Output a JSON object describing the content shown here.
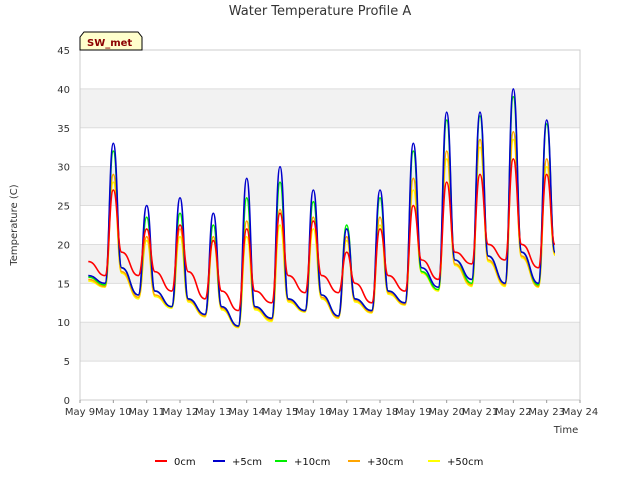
{
  "chart_data": {
    "type": "line",
    "title": "Water Temperature Profile A",
    "xlabel": "Time",
    "ylabel": "Temperature (C)",
    "site_label": "SW_met",
    "ylim": [
      0,
      45
    ],
    "yticks": [
      0,
      5,
      10,
      15,
      20,
      25,
      30,
      35,
      40,
      45
    ],
    "xlim": [
      "2024-05-09",
      "2024-05-24"
    ],
    "xtick_labels": [
      "May 9",
      "May 10",
      "May 11",
      "May 12",
      "May 13",
      "May 14",
      "May 15",
      "May 16",
      "May 17",
      "May 18",
      "May 19",
      "May 20",
      "May 21",
      "May 22",
      "May 23",
      "May 24"
    ],
    "grid": "horizontal bands",
    "legend_position": "bottom",
    "colors": {
      "0cm": "#ff0000",
      "+5cm": "#0000cc",
      "+10cm": "#00ee00",
      "+30cm": "#ffa500",
      "+50cm": "#ffff00",
      "band": "#f2f2f2",
      "badge_bg": "#ffffcc"
    },
    "x": [
      "May 9.25",
      "May 9.75",
      "May 10",
      "May 10.25",
      "May 10.75",
      "May 11",
      "May 11.25",
      "May 11.75",
      "May 12",
      "May 12.25",
      "May 12.75",
      "May 13",
      "May 13.25",
      "May 13.75",
      "May 14",
      "May 14.25",
      "May 14.75",
      "May 15",
      "May 15.25",
      "May 15.75",
      "May 16",
      "May 16.25",
      "May 16.75",
      "May 17",
      "May 17.25",
      "May 17.75",
      "May 18",
      "May 18.25",
      "May 18.75",
      "May 19",
      "May 19.25",
      "May 19.75",
      "May 20",
      "May 20.25",
      "May 20.75",
      "May 21",
      "May 21.25",
      "May 21.75",
      "May 22",
      "May 22.25",
      "May 22.75",
      "May 23",
      "May 23.25"
    ],
    "series": [
      {
        "name": "0cm",
        "color": "#ff0000",
        "values": [
          17.8,
          16.0,
          27.0,
          19.0,
          16.0,
          22.0,
          16.5,
          14.0,
          22.5,
          16.5,
          13.0,
          20.5,
          14.0,
          11.5,
          22.0,
          14.0,
          12.5,
          24.0,
          16.0,
          13.8,
          23.0,
          16.0,
          13.8,
          19.0,
          15.0,
          12.5,
          22.0,
          16.0,
          14.0,
          25.0,
          18.0,
          15.5,
          28.0,
          19.0,
          17.5,
          29.0,
          20.0,
          18.0,
          31.0,
          20.0,
          17.0,
          29.0,
          20.0
        ]
      },
      {
        "name": "+5cm",
        "color": "#0000cc",
        "values": [
          16.0,
          15.0,
          33.0,
          17.0,
          13.5,
          25.0,
          14.0,
          12.0,
          26.0,
          13.0,
          11.0,
          24.0,
          12.0,
          9.5,
          28.5,
          12.0,
          10.5,
          30.0,
          13.0,
          11.5,
          27.0,
          13.5,
          10.8,
          22.0,
          13.0,
          11.5,
          27.0,
          14.0,
          12.5,
          33.0,
          17.0,
          14.5,
          37.0,
          18.0,
          15.5,
          37.0,
          18.5,
          15.0,
          40.0,
          19.0,
          15.0,
          36.0,
          19.0
        ]
      },
      {
        "name": "+10cm",
        "color": "#00ee00",
        "values": [
          15.8,
          14.8,
          32.0,
          17.0,
          13.5,
          23.5,
          14.0,
          12.0,
          24.0,
          13.0,
          11.0,
          22.5,
          12.0,
          9.5,
          26.0,
          12.0,
          10.5,
          28.0,
          13.0,
          11.5,
          25.5,
          13.5,
          10.8,
          22.5,
          13.0,
          11.5,
          26.0,
          14.0,
          12.5,
          32.0,
          16.5,
          14.2,
          36.0,
          18.0,
          15.0,
          36.5,
          18.5,
          15.0,
          39.0,
          19.0,
          14.8,
          35.5,
          19.0
        ]
      },
      {
        "name": "+30cm",
        "color": "#ffa500",
        "values": [
          15.5,
          14.6,
          29.0,
          16.5,
          13.2,
          21.0,
          13.5,
          12.0,
          22.0,
          12.8,
          10.8,
          21.0,
          11.8,
          9.4,
          23.0,
          11.8,
          10.3,
          24.5,
          12.8,
          11.4,
          23.5,
          13.2,
          10.6,
          21.0,
          12.8,
          11.3,
          23.5,
          13.8,
          12.3,
          28.5,
          16.5,
          14.2,
          32.0,
          17.5,
          14.8,
          33.5,
          18.0,
          14.8,
          34.5,
          18.5,
          14.6,
          31.0,
          18.8
        ]
      },
      {
        "name": "+50cm",
        "color": "#ffff00",
        "values": [
          15.3,
          14.5,
          28.0,
          16.3,
          13.0,
          20.5,
          13.3,
          11.8,
          21.0,
          12.6,
          10.7,
          20.5,
          11.6,
          9.3,
          21.0,
          11.6,
          10.1,
          22.5,
          12.6,
          11.3,
          22.0,
          13.0,
          10.5,
          20.5,
          12.6,
          11.2,
          22.5,
          13.6,
          12.2,
          27.0,
          16.3,
          14.0,
          31.0,
          17.3,
          14.6,
          32.5,
          17.8,
          14.6,
          33.5,
          18.3,
          14.5,
          30.0,
          18.6
        ]
      }
    ]
  }
}
